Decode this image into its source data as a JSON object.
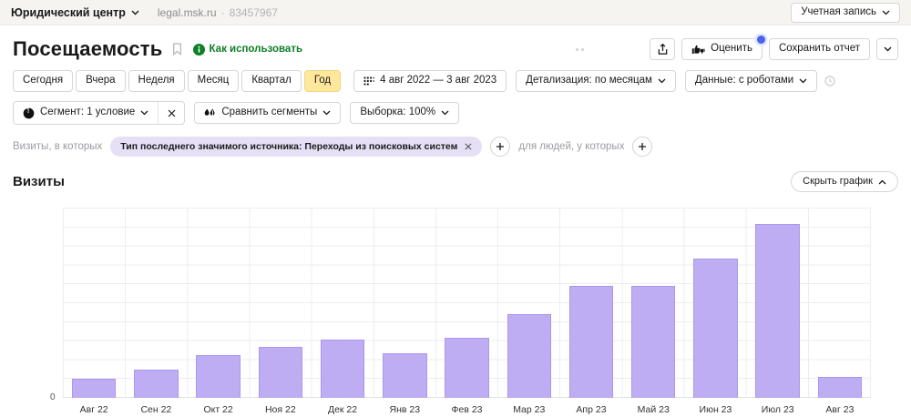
{
  "topbar": {
    "counter_name": "Юридический центр",
    "site": "legal.msk.ru",
    "separator": "·",
    "counter_id": "83457967",
    "account_button": "Учетная запись"
  },
  "header": {
    "title": "Посещаемость",
    "how_to_use_link": "Как использовать",
    "rate_button": "Оценить",
    "save_report_button": "Сохранить отчет"
  },
  "toolbar": {
    "periods": [
      "Сегодня",
      "Вчера",
      "Неделя",
      "Месяц",
      "Квартал",
      "Год"
    ],
    "selected_period": "Год",
    "date_range": "4 авг 2022 — 3 авг 2023",
    "detail_button": "Детализация: по месяцам",
    "data_button": "Данные: с роботами"
  },
  "segments": {
    "segment_button": "Сегмент: 1 условие",
    "compare_button": "Сравнить сегменты",
    "sample_button": "Выборка: 100%"
  },
  "filters": {
    "visits_label": "Визиты, в которых",
    "source_chip": "Тип последнего значимого источника: Переходы из поисковых систем",
    "people_label": "для людей, у которых"
  },
  "chart_section": {
    "title": "Визиты",
    "hide_chart_button": "Скрыть график"
  },
  "chart_data": {
    "type": "bar",
    "title": "Визиты",
    "categories": [
      "Авг 22",
      "Сен 22",
      "Окт 22",
      "Ноя 22",
      "Дек 22",
      "Янв 23",
      "Фев 23",
      "Мар 23",
      "Апр 23",
      "Май 23",
      "Июн 23",
      "Июл 23",
      "Авг 23"
    ],
    "values": [
      1.0,
      1.5,
      2.25,
      2.7,
      3.05,
      2.35,
      3.15,
      4.4,
      5.9,
      5.9,
      7.3,
      9.15,
      1.1
    ],
    "ylim": [
      0,
      10
    ],
    "y_tick_labels": [
      "0"
    ],
    "xlabel": "",
    "ylabel": "",
    "grid": true,
    "legend": false,
    "bar_color": "#bfadf3",
    "bar_border_color": "#ab96ee",
    "note": "Only the 0 tick is labeled; values are estimated in horizontal-gridline units (plot is 10 gridlines tall)."
  },
  "colors": {
    "accent_green": "#0d8026",
    "selected_period_bg": "#ffe79b",
    "chip_bg": "#e6e0f7",
    "badge_blue": "#4a63e8",
    "bar_fill": "#bfadf3",
    "topbar_bg": "#f5f4f1"
  }
}
